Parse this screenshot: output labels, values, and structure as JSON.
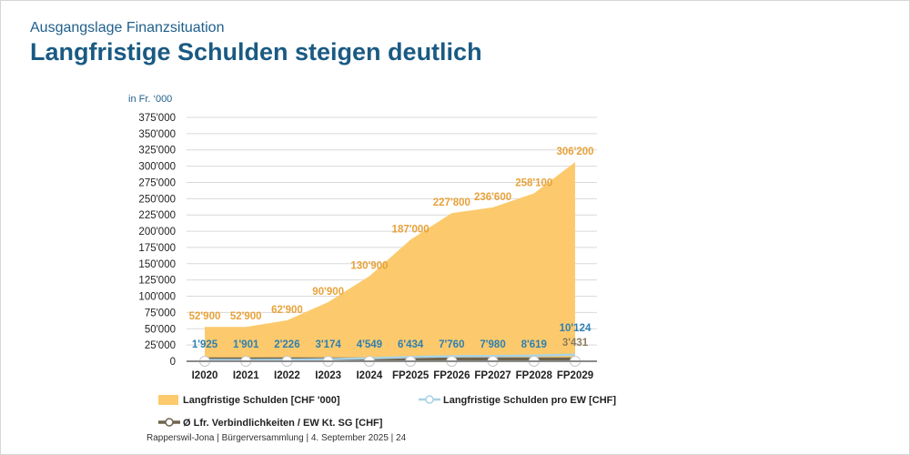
{
  "header": {
    "supertitle": "Ausgangslage Finanzsituation",
    "title": "Langfristige Schulden steigen deutlich"
  },
  "footer": "Rapperswil-Jona | Bürgerversammlung | 4. September 2025 | 24",
  "colors": {
    "title": "#1a5a83",
    "area": "#fcca6c",
    "area_label": "#e8a23a",
    "per_capita_line": "#a8d2e6",
    "per_capita_label": "#2f7fb0",
    "avg_line": "#6f6450",
    "avg_label": "#8c7b5a",
    "grid": "#d9d9d9"
  },
  "chart_data": {
    "type": "area",
    "unit_label": "in Fr. ‘000",
    "categories": [
      "I2020",
      "I2021",
      "I2022",
      "I2023",
      "I2024",
      "FP2025",
      "FP2026",
      "FP2027",
      "FP2028",
      "FP2029"
    ],
    "ylim": [
      0,
      375000
    ],
    "yticks": [
      0,
      25000,
      50000,
      75000,
      100000,
      125000,
      150000,
      175000,
      200000,
      225000,
      250000,
      275000,
      300000,
      325000,
      350000,
      375000
    ],
    "ytick_labels": [
      "0",
      "25'000",
      "50'000",
      "75'000",
      "100'000",
      "125'000",
      "150'000",
      "175'000",
      "200'000",
      "225'000",
      "250'000",
      "275'000",
      "300'000",
      "325'000",
      "350'000",
      "375'000"
    ],
    "grid": true,
    "legend_position": "bottom",
    "series": [
      {
        "name": "Langfristige Schulden [CHF '000]",
        "kind": "area",
        "values": [
          52900,
          52900,
          62900,
          90900,
          130900,
          187000,
          227800,
          236600,
          258100,
          306200
        ],
        "labels": [
          "52'900",
          "52'900",
          "62'900",
          "90'900",
          "130'900",
          "187'000",
          "227'800",
          "236'600",
          "258'100",
          "306'200"
        ]
      },
      {
        "name": "Langfristige Schulden pro EW [CHF]",
        "kind": "line",
        "values": [
          1925,
          1901,
          2226,
          3174,
          4549,
          6434,
          7760,
          7980,
          8619,
          10124
        ],
        "labels": [
          "1'925",
          "1'901",
          "2'226",
          "3'174",
          "4'549",
          "6'434",
          "7'760",
          "7'980",
          "8'619",
          "10'124"
        ]
      },
      {
        "name": "Ø Lfr. Verbindlichkeiten / EW Kt. SG [CHF]",
        "kind": "line",
        "values": [
          3431,
          3431,
          3431,
          3431,
          3431,
          3431,
          3431,
          3431,
          3431,
          3431
        ],
        "labels": [
          "3'431"
        ]
      }
    ]
  }
}
